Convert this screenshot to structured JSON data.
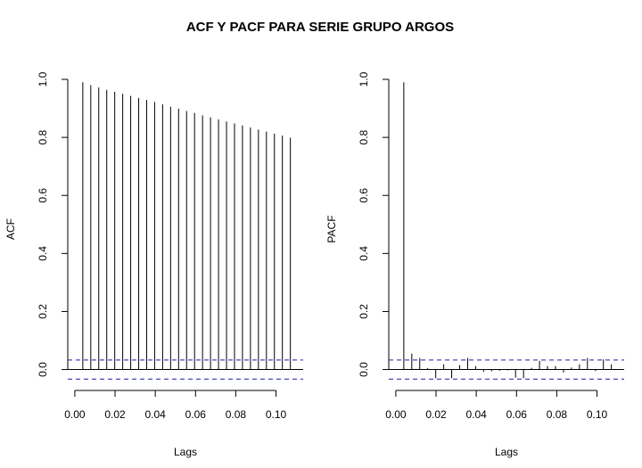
{
  "title": "ACF Y PACF PARA SERIE GRUPO ARGOS",
  "chart_data": [
    {
      "type": "bar",
      "subtype": "correlogram",
      "xlabel": "Lags",
      "ylabel": "ACF",
      "xlim": [
        -0.0035,
        0.1135
      ],
      "ylim": [
        -0.072,
        1.04
      ],
      "xticks": [
        0.0,
        0.02,
        0.04,
        0.06,
        0.08,
        0.1
      ],
      "xtick_labels": [
        "0.00",
        "0.02",
        "0.04",
        "0.06",
        "0.08",
        "0.10"
      ],
      "yticks": [
        0.0,
        0.2,
        0.4,
        0.6,
        0.8,
        1.0
      ],
      "ytick_labels": [
        "0.0",
        "0.2",
        "0.4",
        "0.6",
        "0.8",
        "1.0"
      ],
      "confidence_limits": [
        0.033,
        -0.033
      ],
      "x": [
        0.00397,
        0.00794,
        0.0119,
        0.01587,
        0.01984,
        0.02381,
        0.02778,
        0.03175,
        0.03571,
        0.03968,
        0.04365,
        0.04762,
        0.05159,
        0.05556,
        0.05952,
        0.06349,
        0.06746,
        0.07143,
        0.0754,
        0.07937,
        0.08333,
        0.0873,
        0.09127,
        0.09524,
        0.09921,
        0.10317,
        0.10714
      ],
      "values": [
        0.99,
        0.98,
        0.972,
        0.964,
        0.957,
        0.95,
        0.943,
        0.936,
        0.929,
        0.922,
        0.914,
        0.906,
        0.899,
        0.891,
        0.884,
        0.876,
        0.869,
        0.862,
        0.855,
        0.848,
        0.841,
        0.834,
        0.827,
        0.82,
        0.813,
        0.806,
        0.799
      ]
    },
    {
      "type": "bar",
      "subtype": "correlogram",
      "xlabel": "Lags",
      "ylabel": "PACF",
      "xlim": [
        -0.0035,
        0.1135
      ],
      "ylim": [
        -0.072,
        1.04
      ],
      "xticks": [
        0.0,
        0.02,
        0.04,
        0.06,
        0.08,
        0.1
      ],
      "xtick_labels": [
        "0.00",
        "0.02",
        "0.04",
        "0.06",
        "0.08",
        "0.10"
      ],
      "yticks": [
        0.0,
        0.2,
        0.4,
        0.6,
        0.8,
        1.0
      ],
      "ytick_labels": [
        "0.0",
        "0.2",
        "0.4",
        "0.6",
        "0.8",
        "1.0"
      ],
      "confidence_limits": [
        0.033,
        -0.033
      ],
      "x": [
        0.00397,
        0.00794,
        0.0119,
        0.01587,
        0.01984,
        0.02381,
        0.02778,
        0.03175,
        0.03571,
        0.03968,
        0.04365,
        0.04762,
        0.05159,
        0.05556,
        0.05952,
        0.06349,
        0.06746,
        0.07143,
        0.0754,
        0.07937,
        0.08333,
        0.0873,
        0.09127,
        0.09524,
        0.09921,
        0.10317,
        0.10714
      ],
      "values": [
        0.99,
        0.055,
        0.04,
        0.005,
        -0.03,
        0.018,
        -0.03,
        0.015,
        0.04,
        0.012,
        -0.008,
        -0.006,
        -0.004,
        -0.003,
        -0.028,
        -0.03,
        0.006,
        0.03,
        0.012,
        0.012,
        -0.01,
        0.007,
        0.018,
        0.04,
        -0.005,
        0.035,
        0.018
      ]
    }
  ]
}
